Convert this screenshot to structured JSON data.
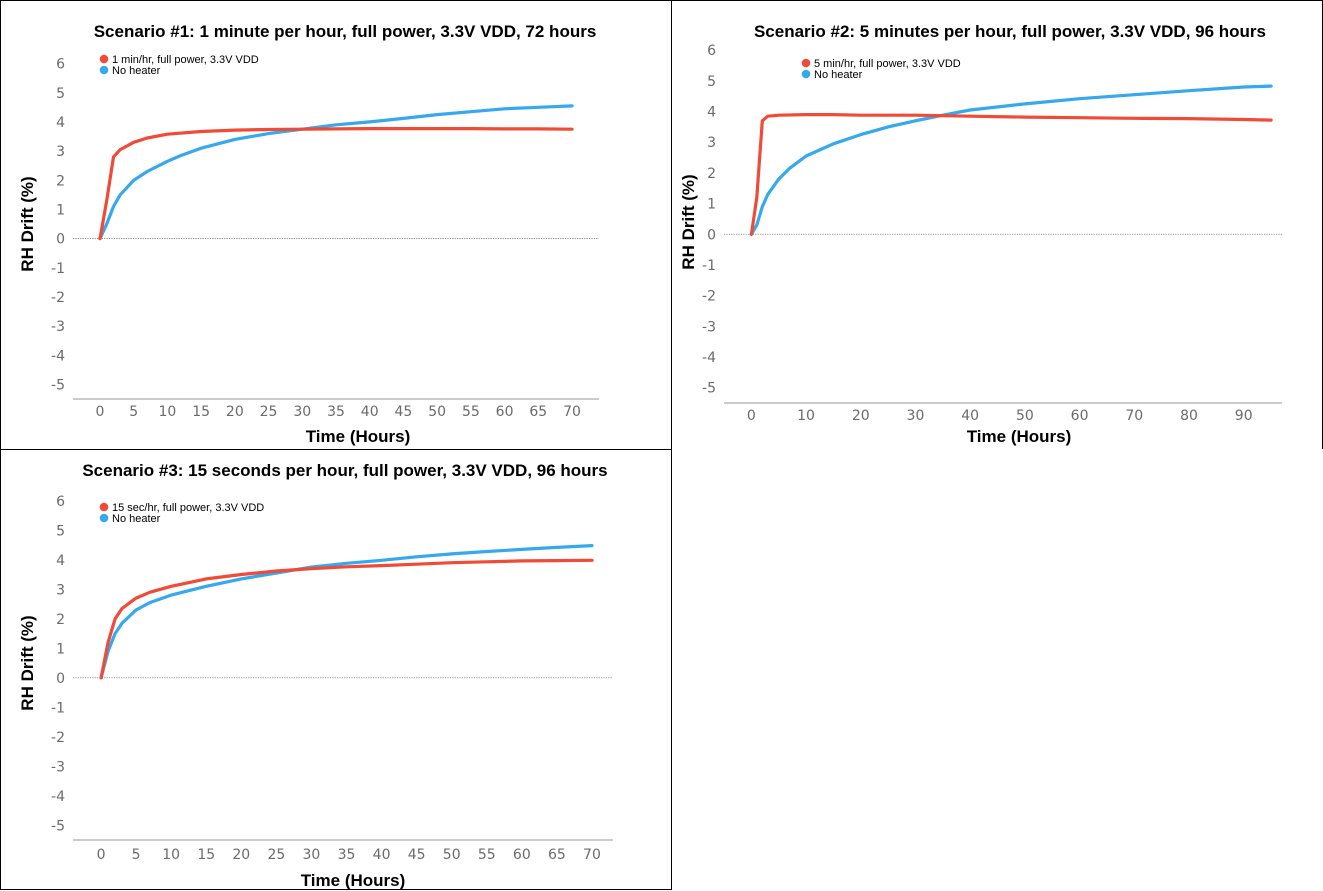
{
  "colors": {
    "heater": "#f04b37",
    "no_heater": "#35a8ee",
    "zero_line": "#777777",
    "axis": "#999999"
  },
  "chart_data": [
    {
      "type": "line",
      "title": "Scenario #1: 1 minute per hour, full power, 3.3V VDD, 72 hours",
      "xlabel": "Time (Hours)",
      "ylabel": "RH Drift (%)",
      "xlim": [
        -4,
        74
      ],
      "ylim": [
        -5.5,
        6.5
      ],
      "xticks": [
        0,
        5,
        10,
        15,
        20,
        25,
        30,
        35,
        40,
        45,
        50,
        55,
        60,
        65,
        70
      ],
      "yticks": [
        -5,
        -4,
        -3,
        -2,
        -1,
        0,
        1,
        2,
        3,
        4,
        5,
        6
      ],
      "grid": false,
      "legend_position": "top-left",
      "series": [
        {
          "name": "1 min/hr, full power, 3.3V VDD",
          "color_key": "heater",
          "x": [
            0,
            1,
            2,
            3,
            5,
            7,
            10,
            15,
            20,
            25,
            30,
            35,
            40,
            45,
            50,
            55,
            60,
            65,
            70
          ],
          "y": [
            0,
            1.3,
            2.8,
            3.05,
            3.3,
            3.45,
            3.58,
            3.67,
            3.72,
            3.74,
            3.75,
            3.76,
            3.77,
            3.77,
            3.77,
            3.77,
            3.76,
            3.76,
            3.75
          ]
        },
        {
          "name": "No heater",
          "color_key": "no_heater",
          "x": [
            0,
            1,
            2,
            3,
            5,
            7,
            10,
            12,
            15,
            20,
            25,
            30,
            35,
            40,
            45,
            50,
            55,
            60,
            65,
            70
          ],
          "y": [
            0,
            0.5,
            1.1,
            1.5,
            2.0,
            2.3,
            2.65,
            2.85,
            3.1,
            3.4,
            3.6,
            3.75,
            3.9,
            4.0,
            4.12,
            4.25,
            4.35,
            4.45,
            4.5,
            4.55
          ]
        }
      ]
    },
    {
      "type": "line",
      "title": "Scenario #2: 5 minutes per hour, full power, 3.3V VDD, 96 hours",
      "xlabel": "Time (Hours)",
      "ylabel": "RH Drift (%)",
      "xlim": [
        -5,
        97
      ],
      "ylim": [
        -5.5,
        6.3
      ],
      "xticks": [
        0,
        10,
        20,
        30,
        40,
        50,
        60,
        70,
        80,
        90
      ],
      "yticks": [
        -5,
        -4,
        -3,
        -2,
        -1,
        0,
        1,
        2,
        3,
        4,
        5,
        6
      ],
      "grid": false,
      "legend_position": "top-left",
      "series": [
        {
          "name": "5 min/hr, full power, 3.3V VDD",
          "color_key": "heater",
          "x": [
            0,
            1,
            2,
            3,
            5,
            10,
            15,
            20,
            30,
            40,
            50,
            60,
            70,
            80,
            90,
            95
          ],
          "y": [
            0,
            1.2,
            3.7,
            3.85,
            3.88,
            3.9,
            3.9,
            3.88,
            3.88,
            3.85,
            3.82,
            3.8,
            3.78,
            3.77,
            3.74,
            3.72
          ]
        },
        {
          "name": "No heater",
          "color_key": "no_heater",
          "x": [
            0,
            1,
            2,
            3,
            5,
            7,
            10,
            15,
            20,
            25,
            30,
            35,
            40,
            50,
            60,
            70,
            80,
            90,
            95
          ],
          "y": [
            0,
            0.3,
            0.9,
            1.3,
            1.8,
            2.15,
            2.55,
            2.95,
            3.25,
            3.5,
            3.7,
            3.88,
            4.05,
            4.25,
            4.42,
            4.55,
            4.68,
            4.8,
            4.83
          ]
        }
      ]
    },
    {
      "type": "line",
      "title": "Scenario #3: 15 seconds per hour, full power, 3.3V VDD, 96 hours",
      "xlabel": "Time (Hours)",
      "ylabel": "RH Drift (%)",
      "xlim": [
        -4,
        73
      ],
      "ylim": [
        -5.5,
        6.5
      ],
      "xticks": [
        0,
        5,
        10,
        15,
        20,
        25,
        30,
        35,
        40,
        45,
        50,
        55,
        60,
        65,
        70
      ],
      "yticks": [
        -5,
        -4,
        -3,
        -2,
        -1,
        0,
        1,
        2,
        3,
        4,
        5,
        6
      ],
      "grid": false,
      "legend_position": "top-left",
      "series": [
        {
          "name": "15 sec/hr, full power, 3.3V VDD",
          "color_key": "heater",
          "x": [
            0,
            1,
            2,
            3,
            5,
            7,
            10,
            15,
            20,
            25,
            30,
            35,
            40,
            45,
            50,
            55,
            60,
            65,
            70
          ],
          "y": [
            0,
            1.2,
            2.0,
            2.35,
            2.7,
            2.9,
            3.1,
            3.35,
            3.5,
            3.62,
            3.7,
            3.76,
            3.8,
            3.85,
            3.9,
            3.93,
            3.96,
            3.97,
            3.98
          ]
        },
        {
          "name": "No heater",
          "color_key": "no_heater",
          "x": [
            0,
            1,
            2,
            3,
            5,
            7,
            10,
            15,
            20,
            25,
            30,
            35,
            40,
            45,
            50,
            55,
            60,
            65,
            70
          ],
          "y": [
            0,
            0.9,
            1.5,
            1.85,
            2.3,
            2.55,
            2.8,
            3.1,
            3.35,
            3.55,
            3.75,
            3.88,
            3.98,
            4.1,
            4.2,
            4.28,
            4.35,
            4.42,
            4.48
          ]
        }
      ]
    }
  ]
}
